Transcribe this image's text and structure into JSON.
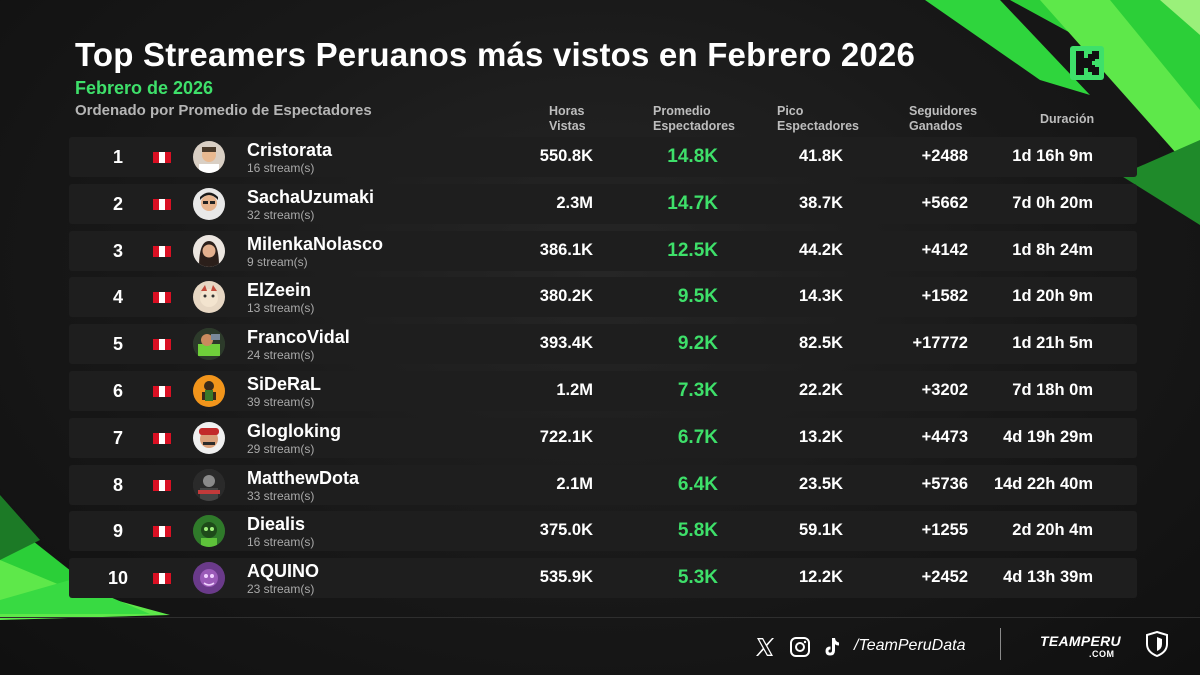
{
  "header": {
    "title": "Top Streamers Peruanos más vistos en Febrero 2026",
    "subtitle": "Febrero de 2026",
    "sort_note": "Ordenado por Promedio de Espectadores"
  },
  "columns": {
    "hours": [
      "Horas",
      "Vistas"
    ],
    "avg": [
      "Promedio",
      "Espectadores"
    ],
    "peak": [
      "Pico",
      "Espectadores"
    ],
    "followers": [
      "Seguidores",
      "Ganados"
    ],
    "duration": [
      "Duración"
    ]
  },
  "rows": [
    {
      "rank": "1",
      "name": "Cristorata",
      "streams": "16 stream(s)",
      "hours": "550.8K",
      "avg": "14.8K",
      "peak": "41.8K",
      "followers": "+2488",
      "duration": "1d 16h 9m"
    },
    {
      "rank": "2",
      "name": "SachaUzumaki",
      "streams": "32 stream(s)",
      "hours": "2.3M",
      "avg": "14.7K",
      "peak": "38.7K",
      "followers": "+5662",
      "duration": "7d 0h 20m"
    },
    {
      "rank": "3",
      "name": "MilenkaNolasco",
      "streams": "9 stream(s)",
      "hours": "386.1K",
      "avg": "12.5K",
      "peak": "44.2K",
      "followers": "+4142",
      "duration": "1d 8h 24m"
    },
    {
      "rank": "4",
      "name": "ElZeein",
      "streams": "13 stream(s)",
      "hours": "380.2K",
      "avg": "9.5K",
      "peak": "14.3K",
      "followers": "+1582",
      "duration": "1d 20h 9m"
    },
    {
      "rank": "5",
      "name": "FrancoVidal",
      "streams": "24 stream(s)",
      "hours": "393.4K",
      "avg": "9.2K",
      "peak": "82.5K",
      "followers": "+17772",
      "duration": "1d 21h 5m"
    },
    {
      "rank": "6",
      "name": "SiDeRaL",
      "streams": "39 stream(s)",
      "hours": "1.2M",
      "avg": "7.3K",
      "peak": "22.2K",
      "followers": "+3202",
      "duration": "7d 18h 0m"
    },
    {
      "rank": "7",
      "name": "Glogloking",
      "streams": "29 stream(s)",
      "hours": "722.1K",
      "avg": "6.7K",
      "peak": "13.2K",
      "followers": "+4473",
      "duration": "4d 19h 29m"
    },
    {
      "rank": "8",
      "name": "MatthewDota",
      "streams": "33 stream(s)",
      "hours": "2.1M",
      "avg": "6.4K",
      "peak": "23.5K",
      "followers": "+5736",
      "duration": "14d 22h 40m"
    },
    {
      "rank": "9",
      "name": "Diealis",
      "streams": "16 stream(s)",
      "hours": "375.0K",
      "avg": "5.8K",
      "peak": "59.1K",
      "followers": "+1255",
      "duration": "2d 20h 4m"
    },
    {
      "rank": "10",
      "name": "AQUINO",
      "streams": "23 stream(s)",
      "hours": "535.9K",
      "avg": "5.3K",
      "peak": "12.2K",
      "followers": "+2452",
      "duration": "4d 13h 39m"
    }
  ],
  "footer": {
    "social_icons": [
      "x-icon",
      "instagram-icon",
      "tiktok-icon"
    ],
    "handle": "/TeamPeruData",
    "brand": "TEAMPERU",
    "brand_sub": ".COM"
  },
  "colors": {
    "accent_green": "#3ee06a",
    "flag_red": "#d91023",
    "background": "#181818",
    "row_background": "#1e1e1e"
  }
}
